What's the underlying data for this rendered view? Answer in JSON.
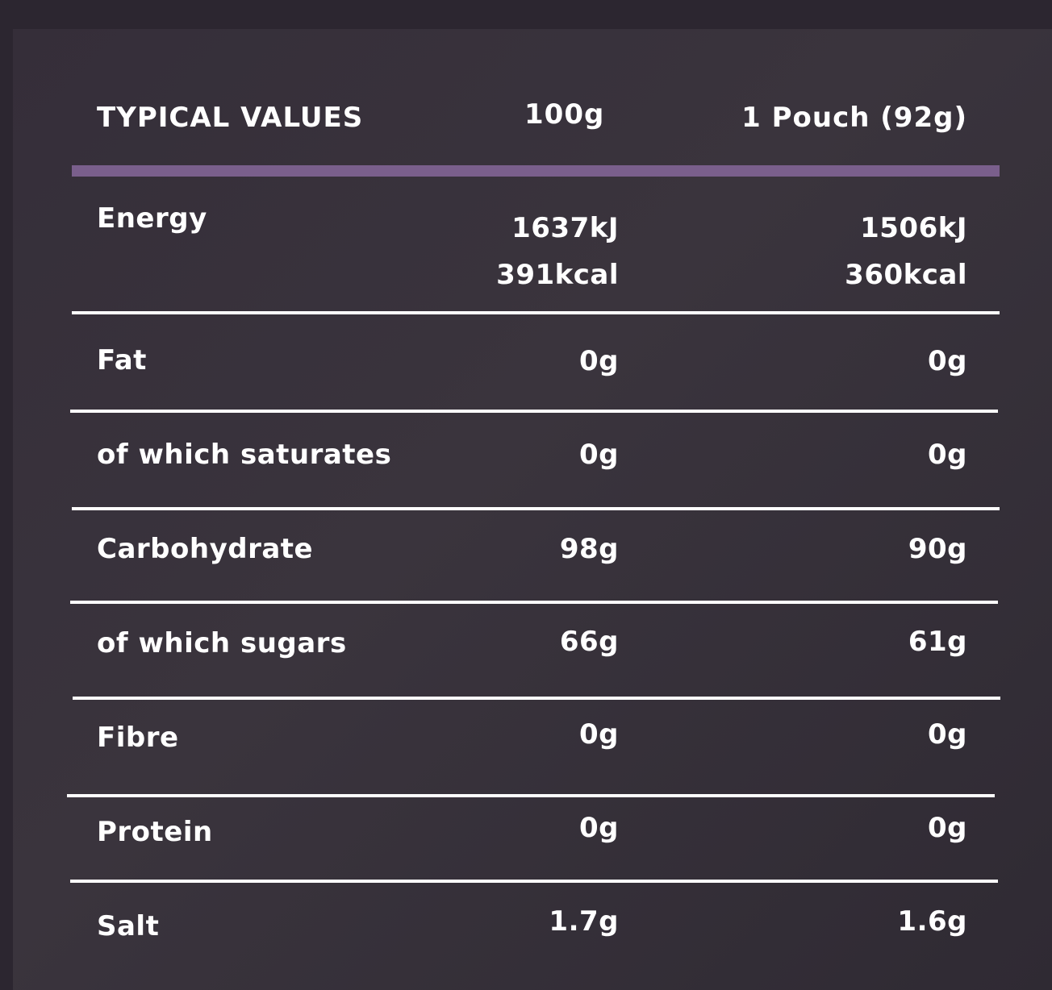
{
  "table": {
    "header": {
      "label": "TYPICAL VALUES",
      "col_100g": "100g",
      "col_pouch": "1 Pouch (92g)"
    },
    "accent_color": "#7a5f8c",
    "rows": [
      {
        "label": "Energy",
        "per100": [
          "1637kJ",
          "391kcal"
        ],
        "perPouch": [
          "1506kJ",
          "360kcal"
        ]
      },
      {
        "label": "Fat",
        "per100": "0g",
        "perPouch": "0g"
      },
      {
        "label": "of which saturates",
        "per100": "0g",
        "perPouch": "0g"
      },
      {
        "label": "Carbohydrate",
        "per100": "98g",
        "perPouch": "90g"
      },
      {
        "label": "of which sugars",
        "per100": "66g",
        "perPouch": "61g"
      },
      {
        "label": "Fibre",
        "per100": "0g",
        "perPouch": "0g"
      },
      {
        "label": "Protein",
        "per100": "0g",
        "perPouch": "0g"
      },
      {
        "label": "Salt",
        "per100": "1.7g",
        "perPouch": "1.6g"
      }
    ]
  }
}
